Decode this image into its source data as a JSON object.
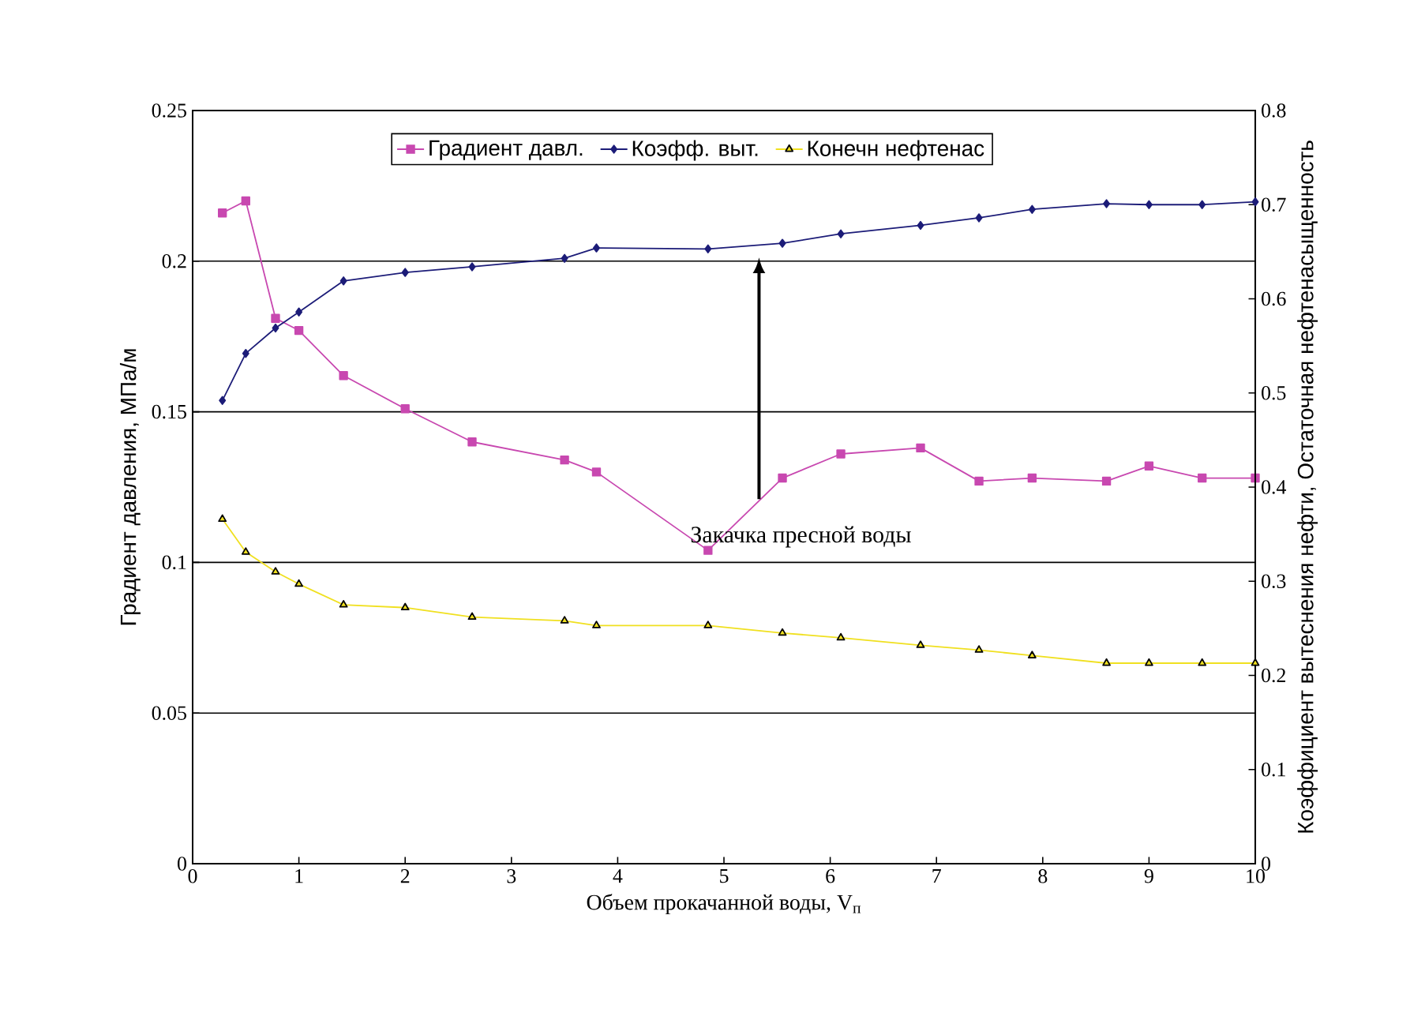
{
  "chart_data": {
    "type": "line",
    "xlabel": "Объем прокачанной воды, V$_{п}$",
    "ylabel": "Градиент давления, МПа/м",
    "y2label": "Коэффициент вытеснения нефти, Остаточная нефтенасыщенность",
    "x": [
      0.28,
      0.5,
      0.78,
      1.0,
      1.42,
      2.0,
      2.63,
      3.5,
      3.8,
      4.85,
      5.55,
      6.1,
      6.85,
      7.4,
      7.9,
      8.6,
      9.0,
      9.5,
      10
    ],
    "series": [
      {
        "name": "Градиент давл.",
        "color": "#c848b0",
        "marker": "square",
        "values": [
          0.216,
          0.22,
          0.181,
          0.177,
          0.162,
          0.151,
          0.14,
          0.134,
          0.13,
          0.104,
          0.128,
          0.136,
          0.138,
          0.127,
          0.128,
          0.127,
          0.132,
          0.128,
          0.128
        ]
      },
      {
        "name": "Коэфф. выт.",
        "color": "#1c1c78",
        "marker": "diamond",
        "axis": "y2",
        "values": [
          0.492,
          0.542,
          0.569,
          0.586,
          0.619,
          0.628,
          0.634,
          0.643,
          0.654,
          0.653,
          0.659,
          0.669,
          0.678,
          0.686,
          0.695,
          0.701,
          0.7,
          0.7,
          0.703
        ]
      },
      {
        "name": "Конечн нефтенас",
        "color": "#f0e020",
        "marker": "triangle",
        "axis": "y2",
        "values": [
          0.366,
          0.331,
          0.31,
          0.297,
          0.275,
          0.272,
          0.262,
          0.258,
          0.253,
          0.253,
          0.245,
          0.24,
          0.232,
          0.227,
          0.221,
          0.213,
          0.213,
          0.213,
          0.213
        ]
      }
    ],
    "xlim": [
      0,
      10
    ],
    "xticks": [
      0,
      1,
      2,
      3,
      4,
      5,
      6,
      7,
      8,
      9,
      10
    ],
    "ylim": [
      0,
      0.25
    ],
    "yticks": [
      0,
      0.05,
      0.1,
      0.15,
      0.2,
      0.25
    ],
    "y2lim": [
      0,
      0.8
    ],
    "y2ticks": [
      0,
      0.1,
      0.2,
      0.3,
      0.4,
      0.5,
      0.6,
      0.7,
      0.8
    ],
    "annotations": [
      "Закачка пресной воды"
    ],
    "grid": "y",
    "legend": "top",
    "line_style": "solid"
  }
}
